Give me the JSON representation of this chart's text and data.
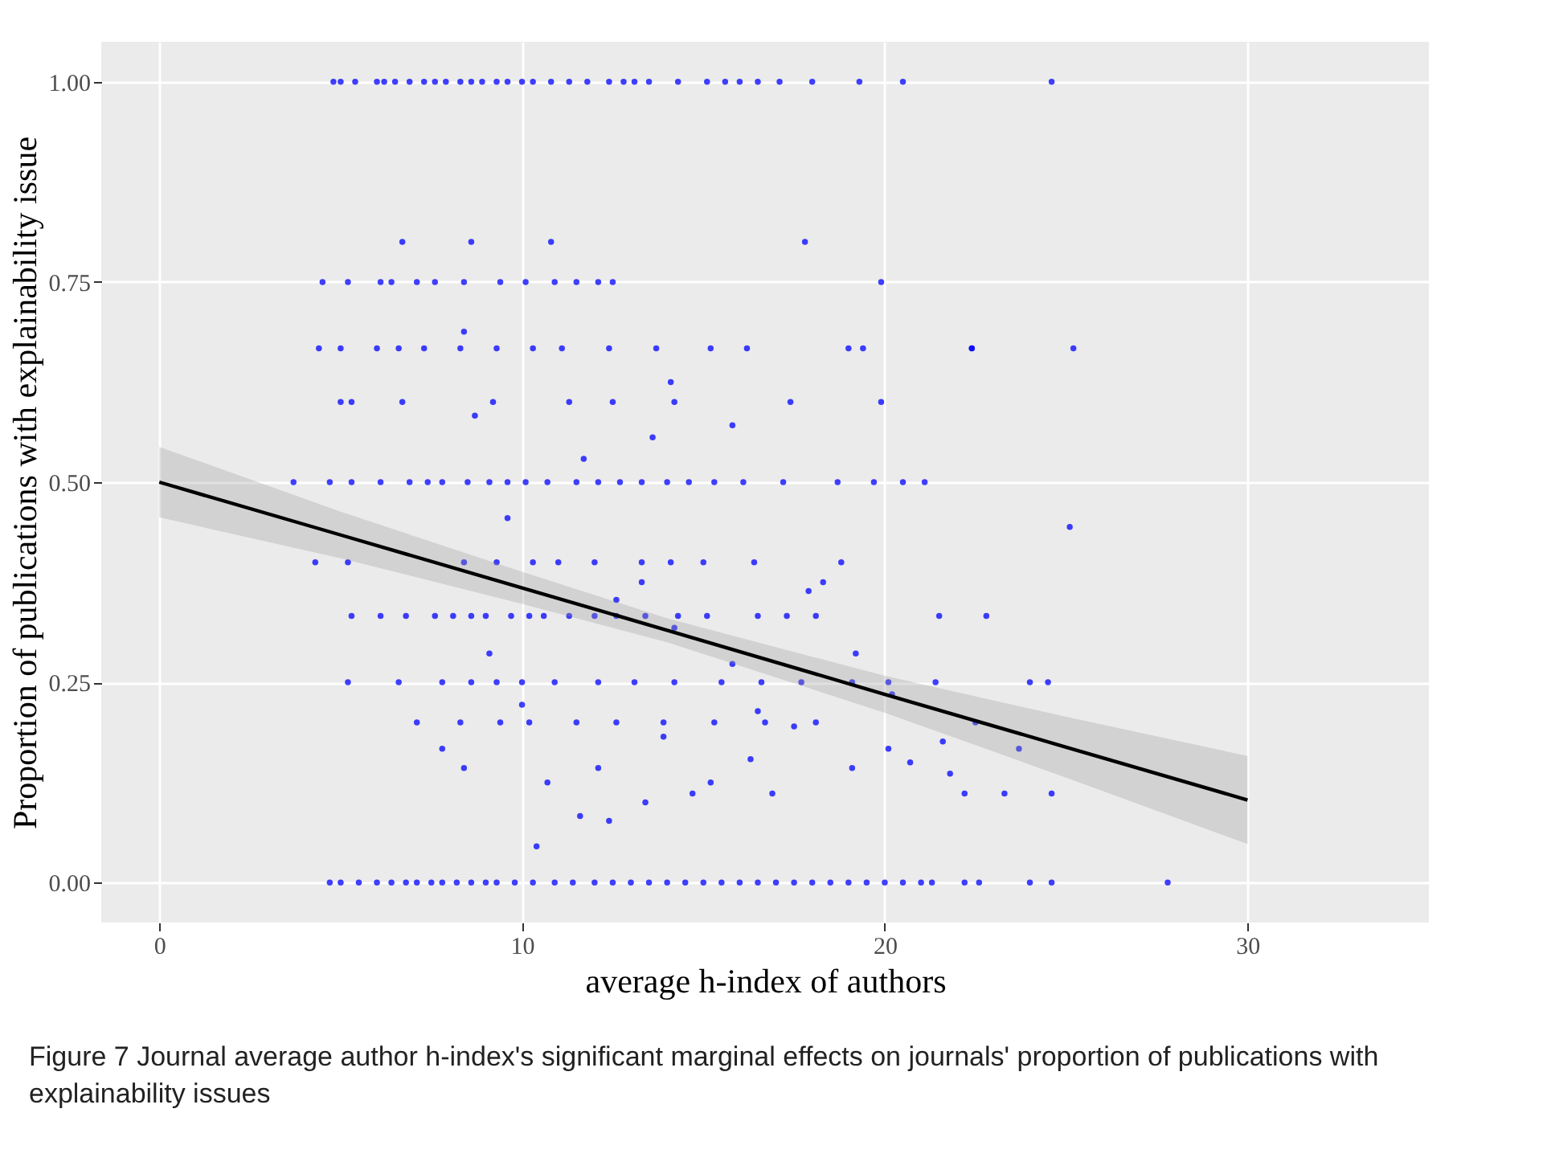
{
  "chart_data": {
    "type": "scatter",
    "xlabel": "average h-index of authors",
    "ylabel": "Proportion of publications with explainability issue",
    "xlim": [
      -1.6,
      35
    ],
    "ylim": [
      -0.05,
      1.05
    ],
    "xticks": [
      0,
      10,
      20,
      30
    ],
    "yticks": [
      {
        "value": 0,
        "label": "0.00"
      },
      {
        "value": 0.25,
        "label": "0.25"
      },
      {
        "value": 0.5,
        "label": "0.50"
      },
      {
        "value": 0.75,
        "label": "0.75"
      },
      {
        "value": 1,
        "label": "1.00"
      }
    ],
    "grid": true,
    "annotations": [
      "Figure 7  Journal average author h-index's significant marginal effects on journals' proportion of publications with explainability issues"
    ],
    "series": [
      {
        "color": "#0000ff",
        "marker": "circle",
        "x": [
          4.8,
          5.0,
          5.4,
          6.0,
          6.2,
          6.5,
          6.9,
          7.3,
          7.6,
          7.9,
          8.3,
          8.6,
          8.9,
          9.3,
          9.6,
          10.0,
          10.3,
          10.8,
          11.3,
          11.8,
          12.4,
          12.8,
          13.1,
          13.5,
          14.3,
          15.1,
          15.6,
          16.0,
          16.5,
          17.1,
          18.0,
          19.3,
          20.5,
          24.6,
          4.7,
          5.0,
          5.5,
          6.0,
          6.4,
          6.8,
          7.1,
          7.5,
          7.8,
          8.2,
          8.6,
          9.0,
          9.3,
          9.8,
          10.3,
          10.9,
          11.4,
          12.0,
          12.5,
          13.0,
          13.5,
          14.0,
          14.5,
          15.0,
          15.5,
          16.0,
          16.5,
          17.0,
          17.5,
          18.0,
          18.5,
          19.0,
          19.5,
          20.0,
          20.5,
          21.0,
          21.3,
          22.2,
          22.6,
          24.0,
          24.6,
          27.8,
          4.5,
          5.2,
          6.1,
          6.4,
          7.1,
          7.6,
          8.4,
          9.4,
          10.1,
          10.9,
          11.5,
          12.1,
          12.5,
          19.9,
          6.7,
          8.6,
          10.8,
          17.8,
          4.4,
          5.0,
          6.0,
          6.6,
          7.3,
          8.3,
          9.3,
          10.3,
          11.1,
          12.4,
          13.7,
          15.2,
          16.2,
          19.0,
          19.4,
          22.4,
          25.2,
          5.0,
          5.3,
          6.7,
          9.2,
          11.3,
          12.5,
          14.2,
          17.4,
          19.9,
          3.7,
          4.7,
          5.3,
          6.1,
          6.9,
          7.4,
          7.8,
          8.5,
          9.1,
          9.6,
          10.1,
          10.7,
          11.5,
          12.1,
          12.7,
          13.3,
          14.0,
          14.6,
          15.3,
          16.1,
          17.2,
          18.7,
          19.7,
          20.5,
          21.1,
          4.3,
          5.2,
          8.4,
          9.3,
          10.3,
          11.0,
          12.0,
          13.3,
          14.1,
          15.0,
          16.4,
          18.8,
          5.3,
          6.1,
          6.8,
          7.6,
          8.1,
          8.6,
          9.0,
          9.7,
          10.2,
          10.6,
          11.3,
          12.0,
          12.6,
          13.4,
          14.3,
          15.1,
          16.5,
          17.3,
          18.1,
          21.5,
          22.8,
          5.2,
          6.6,
          7.8,
          8.6,
          9.3,
          10.0,
          10.9,
          12.1,
          13.1,
          14.2,
          15.5,
          16.6,
          17.7,
          19.1,
          20.1,
          21.4,
          24.0,
          24.5,
          7.1,
          8.3,
          9.4,
          10.2,
          11.5,
          12.6,
          13.9,
          15.3,
          16.7,
          18.1,
          22.5,
          7.8,
          8.4,
          9.1,
          10.0,
          10.7,
          11.6,
          12.4,
          13.4,
          14.7,
          15.2,
          16.3,
          16.9,
          10.4,
          12.1,
          13.9,
          8.7,
          9.6,
          11.7,
          13.6,
          14.1,
          15.8,
          8.4,
          12.6,
          13.3,
          14.2,
          15.8,
          17.9,
          18.3,
          19.2,
          20.2,
          21.6,
          22.2,
          23.3,
          24.6,
          25.1,
          22.4,
          20.1,
          20.7,
          19.1,
          17.5,
          16.5,
          23.7,
          21.8
        ],
        "values": [
          1,
          1,
          1,
          1,
          1,
          1,
          1,
          1,
          1,
          1,
          1,
          1,
          1,
          1,
          1,
          1,
          1,
          1,
          1,
          1,
          1,
          1,
          1,
          1,
          1,
          1,
          1,
          1,
          1,
          1,
          1,
          1,
          1,
          1,
          0,
          0,
          0,
          0,
          0,
          0,
          0,
          0,
          0,
          0,
          0,
          0,
          0,
          0,
          0,
          0,
          0,
          0,
          0,
          0,
          0,
          0,
          0,
          0,
          0,
          0,
          0,
          0,
          0,
          0,
          0,
          0,
          0,
          0,
          0,
          0,
          0,
          0,
          0,
          0,
          0,
          0,
          0.75,
          0.75,
          0.75,
          0.75,
          0.75,
          0.75,
          0.75,
          0.75,
          0.75,
          0.75,
          0.75,
          0.75,
          0.75,
          0.75,
          0.8,
          0.8,
          0.8,
          0.8,
          0.667,
          0.667,
          0.667,
          0.667,
          0.667,
          0.667,
          0.667,
          0.667,
          0.667,
          0.667,
          0.667,
          0.667,
          0.667,
          0.667,
          0.667,
          0.667,
          0.667,
          0.6,
          0.6,
          0.6,
          0.6,
          0.6,
          0.6,
          0.6,
          0.6,
          0.6,
          0.5,
          0.5,
          0.5,
          0.5,
          0.5,
          0.5,
          0.5,
          0.5,
          0.5,
          0.5,
          0.5,
          0.5,
          0.5,
          0.5,
          0.5,
          0.5,
          0.5,
          0.5,
          0.5,
          0.5,
          0.5,
          0.5,
          0.5,
          0.5,
          0.5,
          0.4,
          0.4,
          0.4,
          0.4,
          0.4,
          0.4,
          0.4,
          0.4,
          0.4,
          0.4,
          0.4,
          0.4,
          0.333,
          0.333,
          0.333,
          0.333,
          0.333,
          0.333,
          0.333,
          0.333,
          0.333,
          0.333,
          0.333,
          0.333,
          0.333,
          0.333,
          0.333,
          0.333,
          0.333,
          0.333,
          0.333,
          0.333,
          0.333,
          0.25,
          0.25,
          0.25,
          0.25,
          0.25,
          0.25,
          0.25,
          0.25,
          0.25,
          0.25,
          0.25,
          0.25,
          0.25,
          0.25,
          0.25,
          0.25,
          0.25,
          0.25,
          0.2,
          0.2,
          0.2,
          0.2,
          0.2,
          0.2,
          0.2,
          0.2,
          0.2,
          0.2,
          0.2,
          0.167,
          0.143,
          0.286,
          0.222,
          0.125,
          0.083,
          0.077,
          0.1,
          0.111,
          0.125,
          0.154,
          0.111,
          0.045,
          0.143,
          0.182,
          0.583,
          0.455,
          0.529,
          0.556,
          0.625,
          0.571,
          0.688,
          0.353,
          0.375,
          0.318,
          0.273,
          0.364,
          0.375,
          0.286,
          0.235,
          0.176,
          0.111,
          0.111,
          0.111,
          0.444,
          0.667,
          0.167,
          0.15,
          0.143,
          0.195,
          0.214,
          0.167,
          0.136
        ]
      },
      {
        "type": "line",
        "marker": "none",
        "color": "#000000",
        "x": [
          0,
          5,
          10,
          14,
          20,
          25,
          30
        ],
        "values": [
          0.5,
          0.434,
          0.368,
          0.315,
          0.235,
          0.169,
          0.103
        ],
        "lower": [
          0.456,
          0.405,
          0.348,
          0.3,
          0.212,
          0.131,
          0.048
        ],
        "upper": [
          0.544,
          0.463,
          0.388,
          0.33,
          0.258,
          0.207,
          0.158
        ]
      }
    ]
  }
}
